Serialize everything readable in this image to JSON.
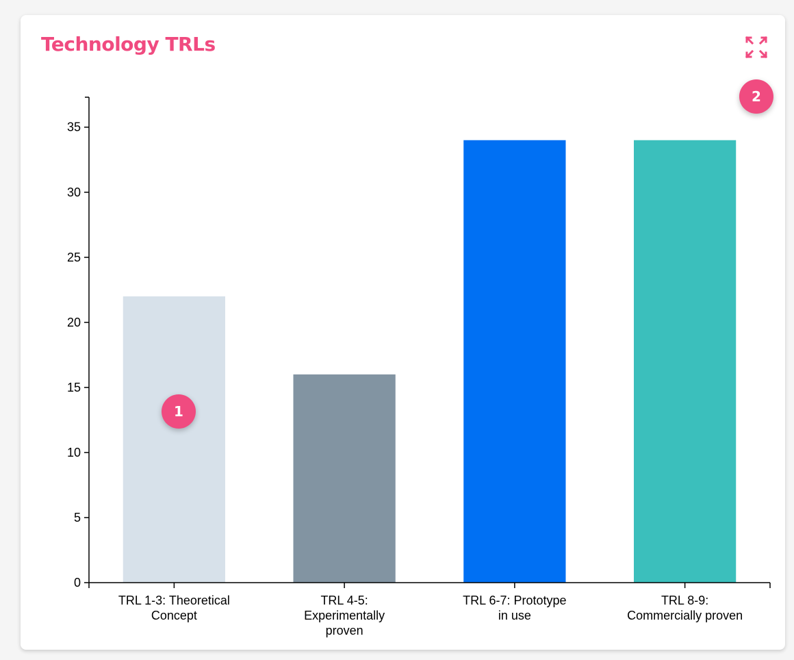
{
  "card": {
    "title": "Technology TRLs",
    "expand_icon": "expand-arrows-icon"
  },
  "badges": [
    {
      "label": "1"
    },
    {
      "label": "2"
    }
  ],
  "colors": {
    "title": "#f04b80",
    "badge": "#f04b80"
  },
  "chart_data": {
    "type": "bar",
    "title": "",
    "xlabel": "",
    "ylabel": "",
    "categories": [
      "TRL 1-3: Theoretical Concept",
      "TRL 4-5: Experimentally proven",
      "TRL 6-7: Prototype in use",
      "TRL 8-9: Commercially proven"
    ],
    "values": [
      22,
      16,
      34,
      34
    ],
    "bar_colors": [
      "#d7e1ea",
      "#8294a2",
      "#0070f3",
      "#3bbfbc"
    ],
    "ylim": [
      0,
      37.3
    ],
    "yticks": [
      0,
      5,
      10,
      15,
      20,
      25,
      30,
      35
    ],
    "grid": false,
    "legend": "none"
  }
}
